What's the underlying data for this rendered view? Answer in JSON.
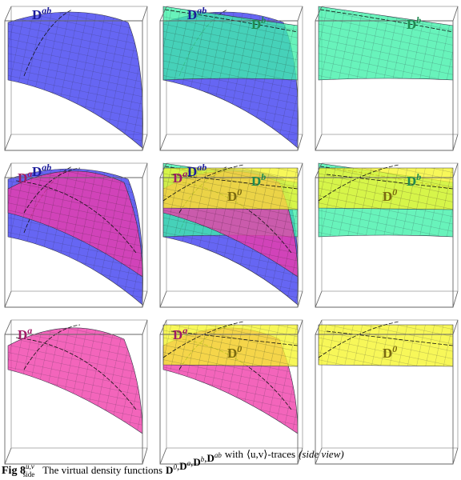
{
  "panels": [
    {
      "labels": [
        {
          "base": "D",
          "sup": "ab"
        }
      ]
    },
    {
      "labels": [
        {
          "base": "D",
          "sup": "ab"
        },
        {
          "base": "D",
          "sup": "b"
        }
      ]
    },
    {
      "labels": [
        {
          "base": "D",
          "sup": "b"
        }
      ]
    },
    {
      "labels": [
        {
          "base": "D",
          "sup": "ab"
        },
        {
          "base": "D",
          "sup": "a"
        }
      ]
    },
    {
      "labels": [
        {
          "base": "D",
          "sup": "ab"
        },
        {
          "base": "D",
          "sup": "b"
        },
        {
          "base": "D",
          "sup": "a"
        },
        {
          "base": "D",
          "sup": "0"
        }
      ]
    },
    {
      "labels": [
        {
          "base": "D",
          "sup": "b"
        },
        {
          "base": "D",
          "sup": "0"
        }
      ]
    },
    {
      "labels": [
        {
          "base": "D",
          "sup": "a"
        }
      ]
    },
    {
      "labels": [
        {
          "base": "D",
          "sup": "a"
        },
        {
          "base": "D",
          "sup": "0"
        }
      ]
    },
    {
      "labels": [
        {
          "base": "D",
          "sup": "0"
        }
      ]
    }
  ],
  "caption": {
    "fig": "Fig 8",
    "fig_sup": "u,v",
    "fig_sub": "side",
    "text": "The virtual density functions",
    "functions": [
      {
        "base": "D",
        "sup": "0"
      },
      {
        "base": "D",
        "sup": "a"
      },
      {
        "base": "D",
        "sup": "b"
      },
      {
        "base": "D",
        "sup": "ab"
      }
    ],
    "separator": ",",
    "with": "with",
    "trace": "⟨u,v⟩-traces",
    "view": "(side view)"
  }
}
